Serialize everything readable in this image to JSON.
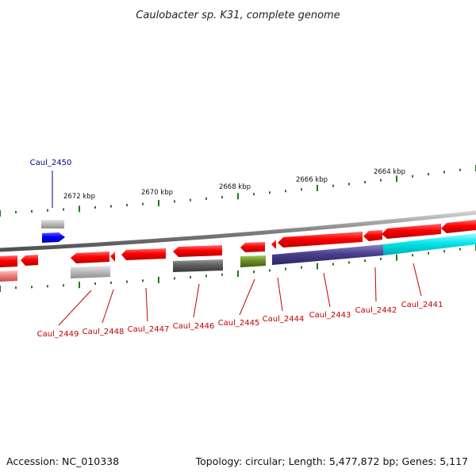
{
  "title": "Caulobacter sp. K31, complete genome",
  "footer": {
    "accession": "Accession: NC_010338",
    "summary": "Topology: circular; Length: 5,477,872 bp; Genes: 5,117"
  },
  "colors": {
    "gene_forward": "#ff0000",
    "gene_forward_top": "#0000ff",
    "tick_green": "#1e7a1e",
    "backbone": "#8a8a8a",
    "label_red": "#c00000",
    "label_blue": "#00008b",
    "cyan": "#00e5e5",
    "navy": "#4b3f8f",
    "olive": "#6b8e23",
    "dark_gray": "#606060",
    "light_gray": "#b8b8b8",
    "pink": "#f08080"
  },
  "kbp_labels": [
    "2672 kbp",
    "2670 kbp",
    "2668 kbp",
    "2666 kbp",
    "2664 kbp"
  ],
  "gene_labels": {
    "top": "Caul_2450",
    "bottom": [
      "Caul_2449",
      "Caul_2448",
      "Caul_2447",
      "Caul_2446",
      "Caul_2445",
      "Caul_2444",
      "Caul_2443",
      "Caul_2442",
      "Caul_2441"
    ]
  }
}
